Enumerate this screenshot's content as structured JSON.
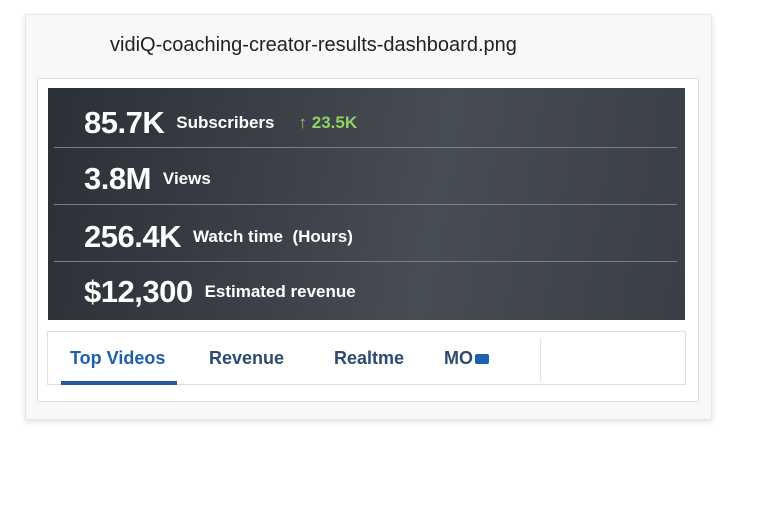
{
  "title": "vidiQ-coaching-creator-results-dashboard.png",
  "stats": [
    {
      "value": "85.7K",
      "label": "Subscribers",
      "delta": "23.5K"
    },
    {
      "value": "3.8M",
      "label": "Views"
    },
    {
      "value": "256.4K",
      "label": "Watch time  (Hours)"
    },
    {
      "value": "$12,300",
      "label": "Estimated revenue"
    }
  ],
  "tabs": [
    {
      "label": "Top Videos"
    },
    {
      "label": "Revenue"
    },
    {
      "label": "Realtme"
    },
    {
      "label": "MO"
    }
  ],
  "colors": {
    "delta": "#8fd35f",
    "accent": "#1d5fb0"
  }
}
